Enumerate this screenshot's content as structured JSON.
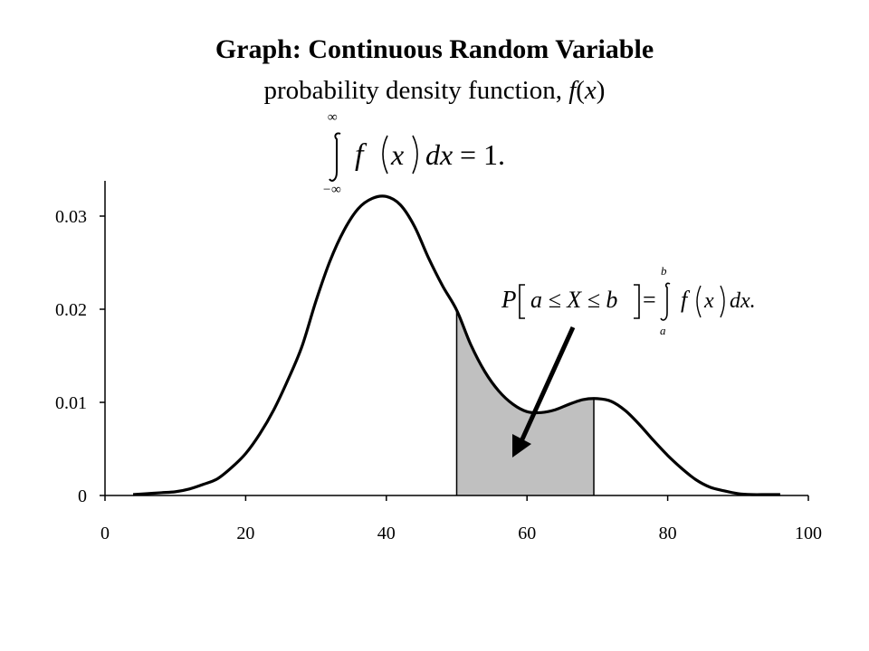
{
  "title": "Graph: Continuous Random Variable",
  "subtitle": {
    "prefix": "probability density function, ",
    "fn": "f",
    "open": "(",
    "var": "x",
    "close": ")"
  },
  "formulas": {
    "normalization": {
      "upper": "∞",
      "lower": "−∞",
      "integrand": "f",
      "arg": "x",
      "differential": "dx",
      "rhs": "= 1."
    },
    "interval": {
      "lhs_P": "P",
      "lhs_inner": "a ≤ X ≤ b",
      "eq": "=",
      "upper": "b",
      "lower": "a",
      "integrand": "f",
      "arg": "x",
      "differential": "dx."
    }
  },
  "colors": {
    "curve": "#000000",
    "shade": "#c0c0c0",
    "axis": "#000000",
    "arrow": "#000000"
  },
  "chart_data": {
    "type": "line",
    "title": "Graph: Continuous Random Variable",
    "subtitle": "probability density function, f(x)",
    "xlim": [
      0,
      100
    ],
    "ylim": [
      0,
      0.034
    ],
    "xticks": [
      0,
      20,
      40,
      60,
      80,
      100
    ],
    "yticks": [
      0,
      0.01,
      0.02,
      0.03
    ],
    "xtick_labels": [
      "0",
      "20",
      "40",
      "60",
      "80",
      "100"
    ],
    "ytick_labels": [
      "0",
      "0.01",
      "0.02",
      "0.03"
    ],
    "grid": false,
    "series": [
      {
        "x": [
          4,
          6,
          8,
          10,
          12,
          14,
          16,
          18,
          20,
          22,
          24,
          26,
          28,
          30,
          32,
          34,
          36,
          38,
          40,
          42,
          44,
          46,
          48,
          50,
          52,
          54,
          56,
          58,
          60,
          62,
          64,
          66,
          68,
          70,
          72,
          74,
          76,
          78,
          80,
          82,
          84,
          86,
          88,
          90,
          92,
          94,
          96
        ],
        "y": [
          0.0001,
          0.0002,
          0.0003,
          0.0004,
          0.0007,
          0.0012,
          0.0018,
          0.003,
          0.0045,
          0.0066,
          0.0092,
          0.0124,
          0.016,
          0.0209,
          0.0252,
          0.0285,
          0.0308,
          0.0319,
          0.0321,
          0.0312,
          0.0289,
          0.0255,
          0.0225,
          0.0199,
          0.0162,
          0.0133,
          0.0112,
          0.0098,
          0.009,
          0.0089,
          0.0092,
          0.0098,
          0.0103,
          0.0104,
          0.0101,
          0.0091,
          0.0076,
          0.0059,
          0.0043,
          0.0029,
          0.0017,
          0.0009,
          0.0005,
          0.0002,
          0.0001,
          0.0001,
          0.0001
        ]
      }
    ],
    "shaded_interval": {
      "a": 50,
      "b": 69.5
    }
  }
}
